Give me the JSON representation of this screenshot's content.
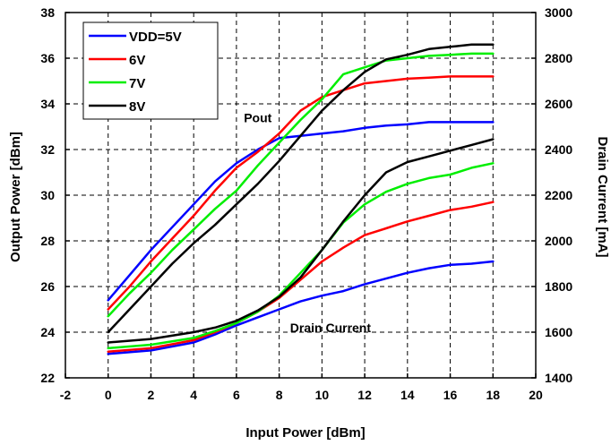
{
  "chart_data": {
    "type": "line",
    "xlabel": "Input Power [dBm]",
    "ylabel": "Output Power [dBm]",
    "y2label": "Drain Current [mA]",
    "xlim": [
      -2,
      20
    ],
    "ylim": [
      22,
      38
    ],
    "y2lim": [
      1400,
      3000
    ],
    "xticks": [
      -2,
      0,
      2,
      4,
      6,
      8,
      10,
      12,
      14,
      16,
      18,
      20
    ],
    "yticks": [
      22,
      24,
      26,
      28,
      30,
      32,
      34,
      36,
      38
    ],
    "y2ticks": [
      1400,
      1600,
      1800,
      2000,
      2200,
      2400,
      2600,
      2800,
      3000
    ],
    "grid": true,
    "legend_position": "top-left",
    "annotations": [
      {
        "text": "Pout",
        "x": 7.0,
        "y": 33.2
      },
      {
        "text": "Drain Current",
        "x": 10.4,
        "y": 24.0
      }
    ],
    "series": [
      {
        "name": "VDD=5V",
        "color": "#0000ff",
        "axis": "left",
        "x": [
          0,
          1,
          2,
          3,
          4,
          5,
          6,
          7,
          8,
          9,
          10,
          11,
          12,
          13,
          14,
          15,
          16,
          17,
          18
        ],
        "values": [
          25.4,
          26.5,
          27.6,
          28.6,
          29.6,
          30.6,
          31.4,
          32.0,
          32.5,
          32.6,
          32.7,
          32.8,
          32.95,
          33.05,
          33.1,
          33.2,
          33.2,
          33.2,
          33.2
        ]
      },
      {
        "name": "6V",
        "color": "#ff0000",
        "axis": "left",
        "x": [
          0,
          1,
          2,
          3,
          4,
          5,
          6,
          7,
          8,
          9,
          10,
          11,
          12,
          13,
          14,
          15,
          16,
          17,
          18
        ],
        "values": [
          25.0,
          26.0,
          27.1,
          28.1,
          29.1,
          30.2,
          31.2,
          31.9,
          32.7,
          33.7,
          34.3,
          34.6,
          34.9,
          35.0,
          35.1,
          35.15,
          35.2,
          35.2,
          35.2
        ]
      },
      {
        "name": "7V",
        "color": "#00ee00",
        "axis": "left",
        "x": [
          0,
          1,
          2,
          3,
          4,
          5,
          6,
          7,
          8,
          9,
          10,
          11,
          12,
          13,
          14,
          15,
          16,
          17,
          18
        ],
        "values": [
          24.7,
          25.7,
          26.6,
          27.6,
          28.5,
          29.4,
          30.2,
          31.3,
          32.3,
          33.3,
          34.2,
          35.3,
          35.6,
          35.9,
          36.0,
          36.1,
          36.15,
          36.2,
          36.2
        ]
      },
      {
        "name": "8V",
        "color": "#000000",
        "axis": "left",
        "x": [
          0,
          1,
          2,
          3,
          4,
          5,
          6,
          7,
          8,
          9,
          10,
          11,
          12,
          13,
          14,
          15,
          16,
          17,
          18
        ],
        "values": [
          24.0,
          25.0,
          26.0,
          27.0,
          27.9,
          28.7,
          29.6,
          30.5,
          31.5,
          32.6,
          33.7,
          34.6,
          35.4,
          35.95,
          36.15,
          36.4,
          36.5,
          36.6,
          36.6
        ]
      },
      {
        "name": "",
        "color": "#0000ff",
        "axis": "right",
        "x": [
          0,
          2,
          4,
          5,
          6,
          7,
          8,
          9,
          10,
          11,
          12,
          13,
          14,
          15,
          16,
          17,
          18
        ],
        "values": [
          1505,
          1520,
          1555,
          1590,
          1630,
          1665,
          1700,
          1735,
          1760,
          1780,
          1810,
          1835,
          1860,
          1880,
          1895,
          1900,
          1910
        ]
      },
      {
        "name": "",
        "color": "#ff0000",
        "axis": "right",
        "x": [
          0,
          2,
          4,
          5,
          6,
          7,
          8,
          9,
          10,
          11,
          12,
          13,
          14,
          15,
          16,
          17,
          18
        ],
        "values": [
          1515,
          1530,
          1565,
          1600,
          1640,
          1690,
          1750,
          1830,
          1910,
          1970,
          2025,
          2055,
          2085,
          2110,
          2135,
          2150,
          2170
        ]
      },
      {
        "name": "",
        "color": "#00ee00",
        "axis": "right",
        "x": [
          0,
          2,
          4,
          5,
          6,
          7,
          8,
          9,
          10,
          11,
          12,
          13,
          14,
          15,
          16,
          17,
          18
        ],
        "values": [
          1530,
          1545,
          1575,
          1605,
          1640,
          1690,
          1760,
          1860,
          1960,
          2080,
          2160,
          2215,
          2250,
          2275,
          2290,
          2320,
          2340
        ]
      },
      {
        "name": "",
        "color": "#000000",
        "axis": "right",
        "x": [
          0,
          2,
          4,
          5,
          6,
          7,
          8,
          9,
          10,
          11,
          12,
          13,
          14,
          15,
          16,
          17,
          18
        ],
        "values": [
          1555,
          1570,
          1600,
          1620,
          1650,
          1695,
          1755,
          1840,
          1960,
          2085,
          2200,
          2300,
          2345,
          2370,
          2395,
          2420,
          2445
        ]
      }
    ]
  }
}
